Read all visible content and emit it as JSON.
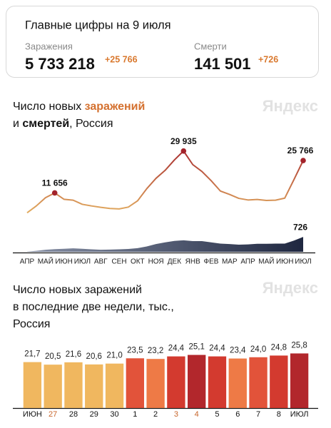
{
  "header": {
    "title": "Главные цифры на 9 июля",
    "stats": [
      {
        "label": "Заражения",
        "value": "5 733 218",
        "delta": "+25 766"
      },
      {
        "label": "Смерти",
        "value": "141 501",
        "delta": "+726"
      }
    ]
  },
  "chart_data": [
    {
      "type": "line",
      "title_lines": [
        [
          "Число новых ",
          "заражений"
        ],
        [
          "и ",
          "смертей",
          ", Россия"
        ]
      ],
      "watermark": "Яндекс",
      "categories": [
        "АПР",
        null,
        "МАЙ",
        null,
        "ИЮН",
        null,
        "ИЮЛ",
        null,
        "АВГ",
        null,
        "СЕН",
        null,
        "ОКТ",
        null,
        "НОЯ",
        null,
        "ДЕК",
        null,
        "ЯНВ",
        null,
        "ФЕВ",
        null,
        "МАР",
        null,
        "АПР",
        null,
        "МАЙ",
        null,
        "ИЮН",
        null,
        "ИЮЛ"
      ],
      "ylim": [
        0,
        32000
      ],
      "y2lim": [
        0,
        800
      ],
      "series": [
        {
          "color": [
            "#e9bb66",
            "#a3232b"
          ],
          "markers": true,
          "values": [
            3000,
            6000,
            9600,
            11656,
            8900,
            8500,
            6700,
            6000,
            5400,
            4900,
            4700,
            5500,
            8200,
            13500,
            18000,
            21500,
            26000,
            29935,
            24000,
            21000,
            17000,
            12500,
            11000,
            9300,
            8600,
            8800,
            8400,
            8500,
            9400,
            17500,
            25766
          ],
          "value_labels": [
            null,
            null,
            null,
            "11 656",
            null,
            null,
            null,
            null,
            null,
            null,
            null,
            null,
            null,
            null,
            null,
            null,
            null,
            "29 935",
            null,
            null,
            null,
            null,
            null,
            null,
            null,
            null,
            null,
            null,
            null,
            null,
            "25 766"
          ]
        },
        {
          "color": [
            "#8891a6",
            "#1f2740"
          ],
          "axis": "y2",
          "values": [
            10,
            50,
            100,
            130,
            150,
            170,
            150,
            120,
            100,
            110,
            120,
            140,
            180,
            260,
            380,
            460,
            530,
            560,
            520,
            520,
            460,
            400,
            380,
            350,
            360,
            390,
            390,
            400,
            400,
            550,
            726
          ],
          "value_labels": [
            null,
            null,
            null,
            null,
            null,
            null,
            null,
            null,
            null,
            null,
            null,
            null,
            null,
            null,
            null,
            null,
            null,
            null,
            null,
            null,
            null,
            null,
            null,
            null,
            null,
            null,
            null,
            null,
            null,
            null,
            "726"
          ]
        }
      ]
    },
    {
      "type": "bar",
      "title_lines": [
        [
          "Число новых заражений"
        ],
        [
          "в последние две недели, тыс.,"
        ],
        [
          "Россия"
        ]
      ],
      "watermark": "Яндекс",
      "categories": [
        "ИЮН",
        "27",
        "28",
        "29",
        "30",
        "1",
        "2",
        "3",
        "4",
        "5",
        "6",
        "7",
        "8",
        "ИЮЛ"
      ],
      "label_colors": [
        "#111111",
        "#c8662c",
        "#111111",
        "#111111",
        "#111111",
        "#111111",
        "#111111",
        "#c8662c",
        "#c8662c",
        "#111111",
        "#111111",
        "#111111",
        "#111111",
        "#111111"
      ],
      "ylim": [
        0,
        30
      ],
      "values": [
        21.7,
        20.5,
        21.6,
        20.6,
        21.0,
        23.5,
        23.2,
        24.4,
        25.1,
        24.4,
        23.4,
        24.0,
        24.8,
        25.8
      ],
      "value_labels": [
        "21,7",
        "20,5",
        "21,6",
        "20,6",
        "21,0",
        "23,5",
        "23,2",
        "24,4",
        "25,1",
        "24,4",
        "23,4",
        "24,0",
        "24,8",
        "25,8"
      ],
      "colors": [
        "#f0b75f",
        "#f0b75f",
        "#f0b75f",
        "#f0b75f",
        "#f0b75f",
        "#e2533a",
        "#ee7a46",
        "#d33a2f",
        "#b2272c",
        "#d33a2f",
        "#ee7a46",
        "#e2533a",
        "#d33a2f",
        "#b2272c"
      ]
    }
  ]
}
